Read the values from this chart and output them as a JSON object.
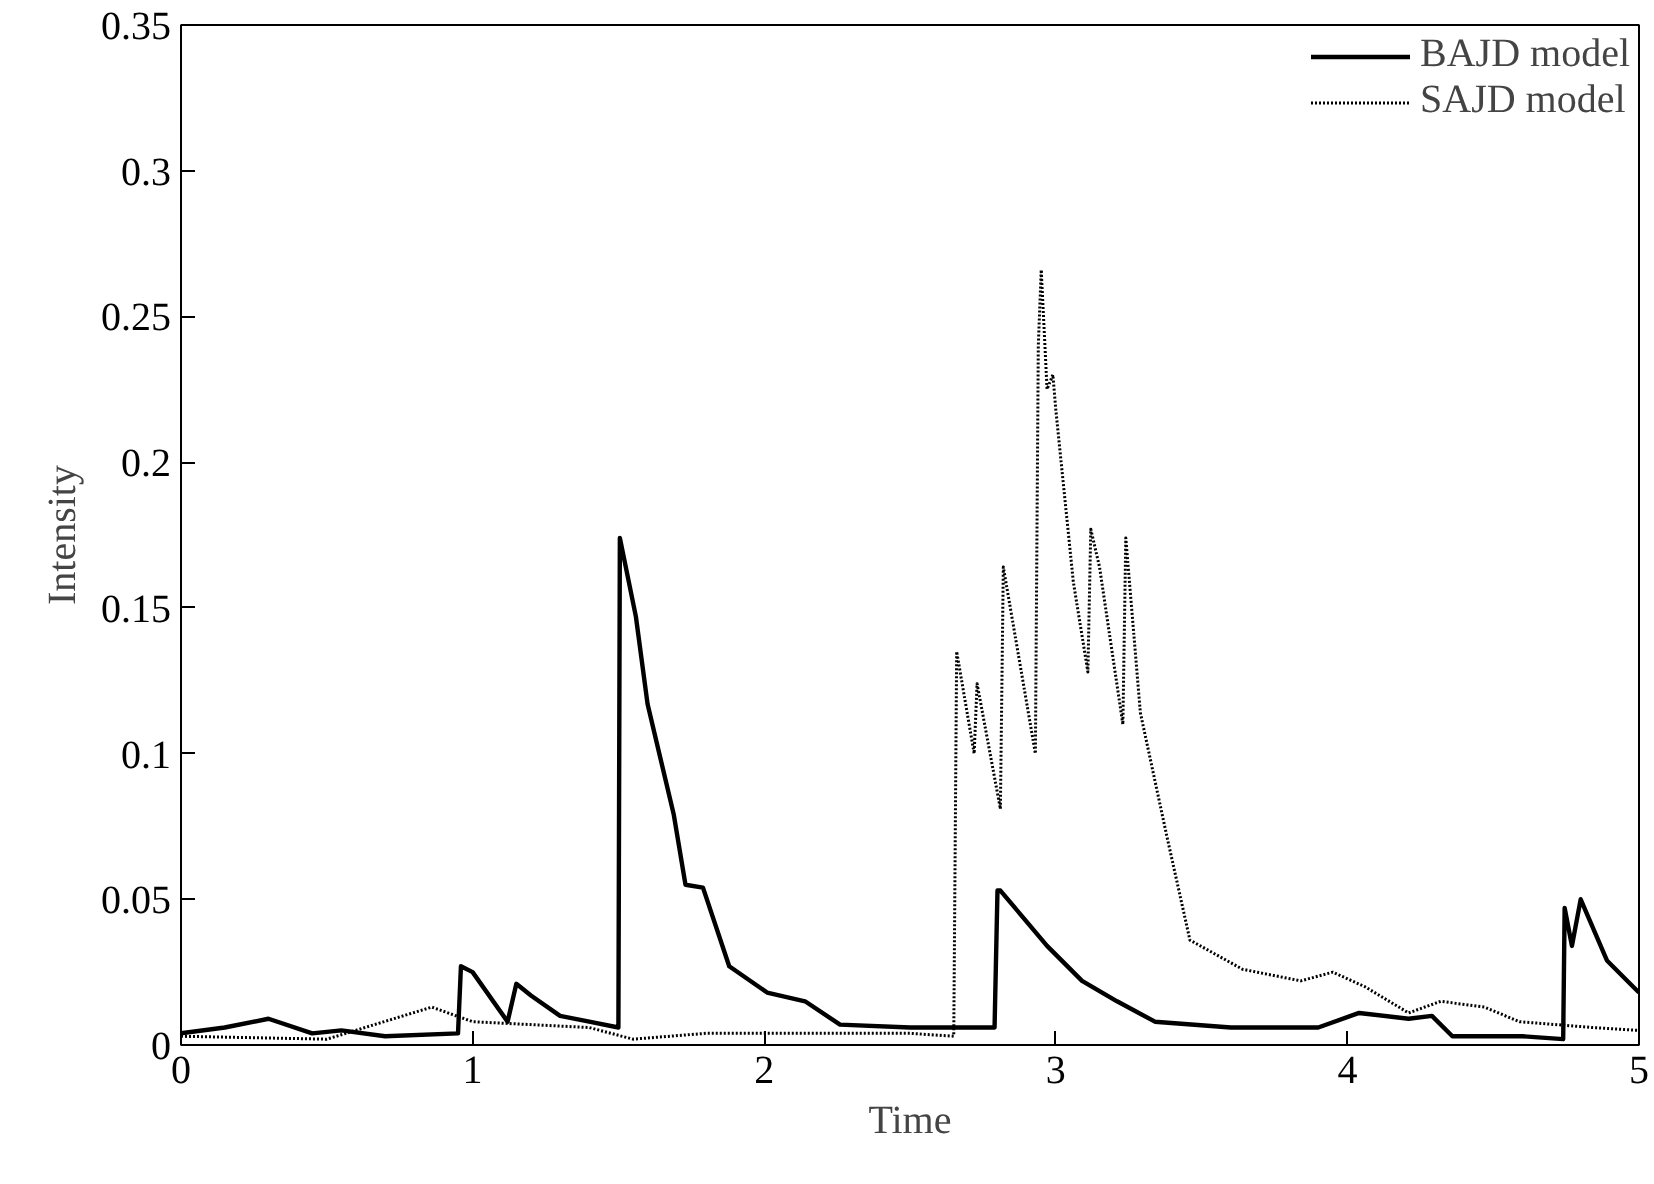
{
  "chart_data": {
    "type": "line",
    "xlabel": "Time",
    "ylabel": "Intensity",
    "xlim": [
      0,
      5
    ],
    "ylim": [
      0,
      0.35
    ],
    "xticks": [
      0,
      1,
      2,
      3,
      4,
      5
    ],
    "yticks": [
      0,
      0.05,
      0.1,
      0.15,
      0.2,
      0.25,
      0.3,
      0.35
    ],
    "grid": false,
    "legend": "top right",
    "marker": "none",
    "series": [
      {
        "name": "BAJD model",
        "color": "#000000",
        "line_style": "solid",
        "x": [
          0,
          0.15,
          0.3,
          0.45,
          0.55,
          0.7,
          0.95,
          0.96,
          1.0,
          1.12,
          1.15,
          1.2,
          1.3,
          1.4,
          1.5,
          1.505,
          1.56,
          1.6,
          1.69,
          1.73,
          1.79,
          1.88,
          2.01,
          2.14,
          2.26,
          2.5,
          2.79,
          2.8,
          2.81,
          2.97,
          3.09,
          3.21,
          3.34,
          3.6,
          3.9,
          4.04,
          4.21,
          4.29,
          4.36,
          4.6,
          4.74,
          4.745,
          4.77,
          4.8,
          4.89,
          4.98,
          5.0
        ],
        "values": [
          0.004,
          0.006,
          0.009,
          0.004,
          0.005,
          0.003,
          0.004,
          0.027,
          0.025,
          0.008,
          0.021,
          0.017,
          0.01,
          0.008,
          0.006,
          0.174,
          0.147,
          0.117,
          0.079,
          0.055,
          0.054,
          0.027,
          0.018,
          0.015,
          0.007,
          0.006,
          0.006,
          0.053,
          0.053,
          0.034,
          0.022,
          0.015,
          0.008,
          0.006,
          0.006,
          0.011,
          0.009,
          0.01,
          0.003,
          0.003,
          0.002,
          0.047,
          0.034,
          0.05,
          0.029,
          0.02,
          0.018
        ]
      },
      {
        "name": "SAJD model",
        "color": "#000000",
        "line_style": "dotted",
        "x": [
          0,
          0.5,
          0.86,
          1.0,
          1.2,
          1.4,
          1.55,
          1.8,
          2.0,
          2.5,
          2.65,
          2.66,
          2.72,
          2.73,
          2.81,
          2.82,
          2.93,
          2.94,
          2.95,
          2.97,
          2.99,
          3.0,
          3.06,
          3.11,
          3.12,
          3.15,
          3.23,
          3.24,
          3.29,
          3.38,
          3.46,
          3.64,
          3.84,
          3.95,
          4.06,
          4.21,
          4.32,
          4.47,
          4.59,
          4.84,
          5.0
        ],
        "values": [
          0.003,
          0.002,
          0.013,
          0.008,
          0.007,
          0.006,
          0.002,
          0.004,
          0.004,
          0.004,
          0.003,
          0.135,
          0.1,
          0.124,
          0.081,
          0.164,
          0.1,
          0.24,
          0.266,
          0.225,
          0.23,
          0.218,
          0.159,
          0.128,
          0.177,
          0.164,
          0.11,
          0.174,
          0.114,
          0.072,
          0.036,
          0.026,
          0.022,
          0.025,
          0.02,
          0.011,
          0.015,
          0.013,
          0.008,
          0.006,
          0.005
        ]
      }
    ]
  }
}
